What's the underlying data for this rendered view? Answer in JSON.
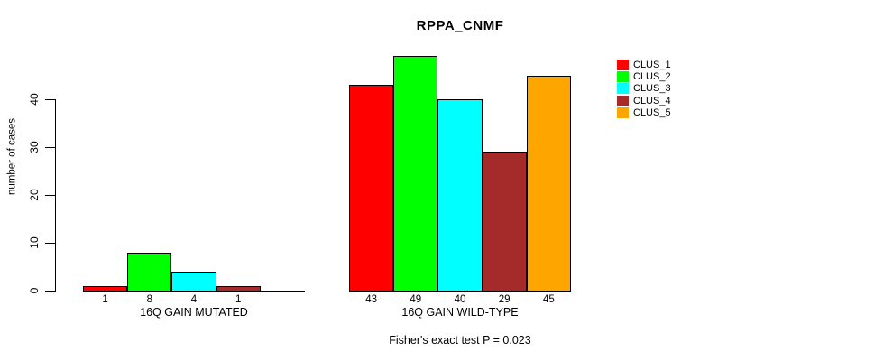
{
  "chart_data": {
    "type": "bar",
    "title": "RPPA_CNMF",
    "ylabel": "number of cases",
    "xlabel": "",
    "ylim": [
      0,
      50
    ],
    "yticks": [
      0,
      10,
      20,
      30,
      40
    ],
    "grid": false,
    "legend_position": "right",
    "legend": [
      {
        "label": "CLUS_1",
        "color": "#FF0000"
      },
      {
        "label": "CLUS_2",
        "color": "#00FF00"
      },
      {
        "label": "CLUS_3",
        "color": "#00FFFF"
      },
      {
        "label": "CLUS_4",
        "color": "#A52A2A"
      },
      {
        "label": "CLUS_5",
        "color": "#FFA500"
      }
    ],
    "groups": [
      {
        "label": "16Q GAIN MUTATED",
        "values": [
          1,
          8,
          4,
          1,
          0
        ],
        "value_labels": [
          "1",
          "8",
          "4",
          "1",
          ""
        ]
      },
      {
        "label": "16Q GAIN WILD-TYPE",
        "values": [
          43,
          49,
          40,
          29,
          45
        ],
        "value_labels": [
          "43",
          "49",
          "40",
          "29",
          "45"
        ]
      }
    ],
    "annotation": "Fisher's exact test P = 0.023"
  }
}
